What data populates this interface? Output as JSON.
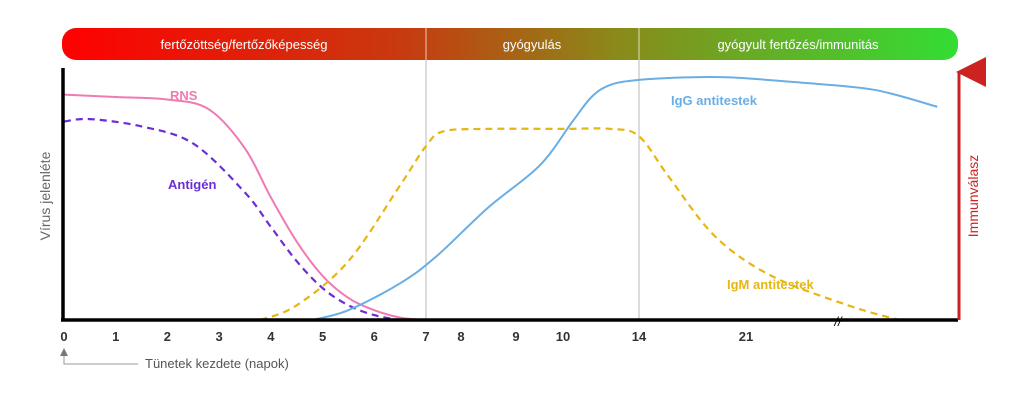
{
  "chart_data": {
    "type": "line",
    "title": "",
    "phases": [
      {
        "label": "fertőzöttség/fertőzőképesség",
        "from": "0",
        "to": "7"
      },
      {
        "label": "gyógyulás",
        "from": "7",
        "to": "14"
      },
      {
        "label": "gyógyult fertőzés/immunitás",
        "from": "14",
        "to": "end"
      }
    ],
    "phase_gradient": [
      "#ff0000",
      "#c73a10",
      "#8a8a1a",
      "#33dd33"
    ],
    "x_ticks": [
      "0",
      "1",
      "2",
      "3",
      "4",
      "5",
      "6",
      "7",
      "8",
      "9",
      "10",
      "14",
      "21"
    ],
    "x_axis_note": "Tünetek kezdete (napok)",
    "ylabel_left": "Vírus jelenléte",
    "ylabel_right": "Immunválasz",
    "right_axis_color": "#cc2222",
    "axis_break": "//",
    "grid": false,
    "y_unit": "relative level (0 = none, 100 = maximum)",
    "series": [
      {
        "name": "RNS",
        "color": "#f07ab3",
        "style": "solid",
        "x": [
          0,
          1,
          2,
          2.8,
          3.5,
          4,
          4.5,
          5,
          5.5,
          6,
          6.5,
          7
        ],
        "y": [
          92,
          91,
          90,
          86,
          70,
          50,
          32,
          18,
          9,
          4,
          1,
          0
        ]
      },
      {
        "name": "Antigén",
        "color": "#6b2ed6",
        "style": "dashed",
        "x": [
          0,
          0.5,
          1.5,
          2.5,
          3.5,
          4,
          4.5,
          5,
          5.5,
          6,
          6.5
        ],
        "y": [
          81,
          82,
          79,
          72,
          52,
          38,
          24,
          13,
          6,
          2,
          0
        ]
      },
      {
        "name": "IgM antitestek",
        "color": "#e6b616",
        "style": "dashed",
        "x": [
          3.8,
          4.5,
          5.5,
          6.5,
          7,
          7.5,
          8.5,
          10,
          12.5,
          14,
          16,
          19,
          22,
          25,
          27
        ],
        "y": [
          0,
          6,
          24,
          55,
          71,
          77,
          78,
          78,
          78,
          75,
          58,
          34,
          18,
          6,
          0
        ]
      },
      {
        "name": "IgG antitestek",
        "color": "#6aaee6",
        "style": "solid",
        "x": [
          4.8,
          5.5,
          6.5,
          7.3,
          8.5,
          9.5,
          10.5,
          11.5,
          12.5,
          14,
          17,
          20,
          23,
          26,
          28.5
        ],
        "y": [
          0,
          4,
          15,
          26,
          46,
          63,
          81,
          91,
          96,
          98,
          99,
          99,
          97,
          94,
          87
        ]
      }
    ]
  }
}
